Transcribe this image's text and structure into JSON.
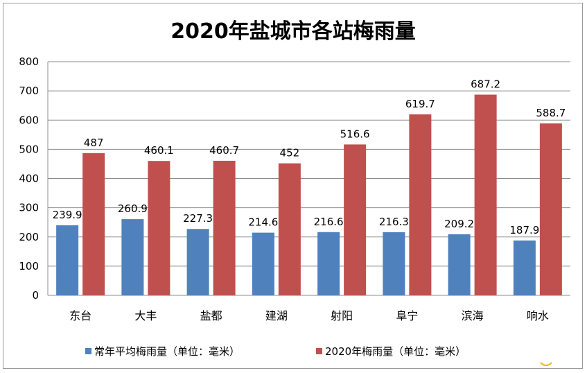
{
  "chart_data": {
    "type": "bar",
    "title": "2020年盐城市各站梅雨量",
    "categories": [
      "东台",
      "大丰",
      "盐都",
      "建湖",
      "射阳",
      "阜宁",
      "滨海",
      "响水"
    ],
    "series": [
      {
        "name": "常年平均梅雨量（单位：毫米）",
        "color": "#4f81bd",
        "values": [
          239.9,
          260.9,
          227.3,
          214.6,
          216.6,
          216.3,
          209.2,
          187.9
        ]
      },
      {
        "name": "2020年梅雨量（单位：毫米）",
        "color": "#c0504d",
        "values": [
          487,
          460.1,
          460.7,
          452,
          516.6,
          619.7,
          687.2,
          588.7
        ]
      }
    ],
    "xlabel": "",
    "ylabel": "",
    "ylim": [
      0,
      800
    ],
    "yticks": [
      0,
      100,
      200,
      300,
      400,
      500,
      600,
      700,
      800
    ],
    "grid": true,
    "legend_position": "bottom",
    "data_labels": true
  }
}
